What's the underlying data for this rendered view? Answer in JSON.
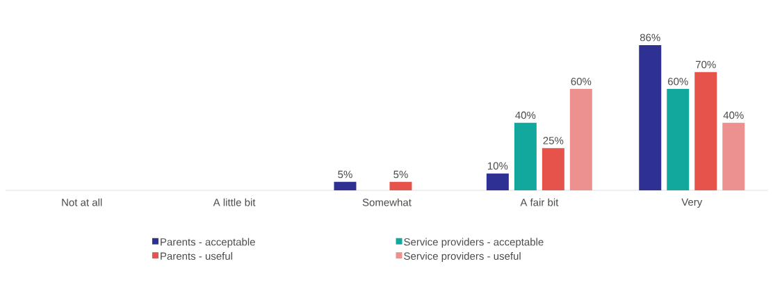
{
  "chart_data": {
    "type": "bar",
    "categories": [
      "Not at all",
      "A little bit",
      "Somewhat",
      "A fair bit",
      "Very"
    ],
    "series": [
      {
        "name": "Parents - acceptable",
        "color": "#2e3192",
        "values": [
          0,
          0,
          5,
          10,
          86
        ],
        "value_labels": [
          null,
          null,
          "5%",
          "10%",
          "86%"
        ]
      },
      {
        "name": "Service providers - acceptable",
        "color": "#13a89e",
        "values": [
          0,
          0,
          0,
          40,
          60
        ],
        "value_labels": [
          null,
          null,
          null,
          "40%",
          "60%"
        ]
      },
      {
        "name": "Parents - useful",
        "color": "#e5534b",
        "values": [
          0,
          0,
          5,
          25,
          70
        ],
        "value_labels": [
          null,
          null,
          "5%",
          "25%",
          "70%"
        ]
      },
      {
        "name": "Service providers - useful",
        "color": "#ec9190",
        "values": [
          0,
          0,
          0,
          60,
          40
        ],
        "value_labels": [
          null,
          null,
          null,
          "60%",
          "40%"
        ]
      }
    ],
    "legend": "bottom"
  }
}
